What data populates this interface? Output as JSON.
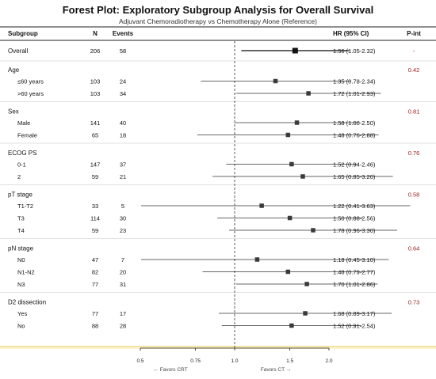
{
  "title": "Forest Plot: Exploratory Subgroup Analysis for Overall Survival",
  "subtitle": "Adjuvant Chemoradiotherapy vs Chemotherapy Alone (Reference)",
  "headers": {
    "subgroup": "Subgroup",
    "n": "N",
    "events": "Events",
    "hr": "HR (95% CI)",
    "pint": "P-int"
  },
  "footer": {
    "favors_left": "← Favors CRT",
    "favors_right": "Favors CT →"
  },
  "colors": {
    "ref_band": "#fdf5d6",
    "ref_border": "#e5cf6a",
    "pint": "#a01f1f",
    "box": "#3a3a3a",
    "line": "#333333"
  },
  "chart_data": {
    "type": "forest",
    "x_ticks": [
      0.5,
      0.75,
      1.0,
      1.5,
      2.0
    ],
    "x_tick_labels": [
      "0.5",
      "0.75",
      "1.0",
      "1.5",
      "2.0"
    ],
    "xlim": [
      0.5,
      2.0
    ],
    "reference_line": 1.0,
    "overall": {
      "label": "Overall",
      "n": "206",
      "events": "58",
      "hr": 1.56,
      "lo": 1.05,
      "hi": 2.32,
      "text": "1.56 (1.05-2.32)",
      "pint": "-"
    },
    "groups": [
      {
        "name": "Age",
        "pint": "0.42",
        "rows": [
          {
            "label": "≤60 years",
            "n": "103",
            "events": "24",
            "hr": 1.35,
            "lo": 0.78,
            "hi": 2.34,
            "text": "1.35 (0.78-2.34)"
          },
          {
            "label": ">60 years",
            "n": "103",
            "events": "34",
            "hr": 1.72,
            "lo": 1.01,
            "hi": 2.93,
            "text": "1.72 (1.01-2.93)"
          }
        ]
      },
      {
        "name": "Sex",
        "pint": "0.81",
        "rows": [
          {
            "label": "Male",
            "n": "141",
            "events": "40",
            "hr": 1.58,
            "lo": 1.0,
            "hi": 2.5,
            "text": "1.58 (1.00-2.50)"
          },
          {
            "label": "Female",
            "n": "65",
            "events": "18",
            "hr": 1.48,
            "lo": 0.76,
            "hi": 2.88,
            "text": "1.48 (0.76-2.88)"
          }
        ]
      },
      {
        "name": "ECOG PS",
        "pint": "0.76",
        "rows": [
          {
            "label": "0-1",
            "n": "147",
            "events": "37",
            "hr": 1.52,
            "lo": 0.94,
            "hi": 2.46,
            "text": "1.52 (0.94-2.46)"
          },
          {
            "label": "2",
            "n": "59",
            "events": "21",
            "hr": 1.65,
            "lo": 0.85,
            "hi": 3.2,
            "text": "1.65 (0.85-3.20)"
          }
        ]
      },
      {
        "name": "pT stage",
        "pint": "0.58",
        "rows": [
          {
            "label": "T1-T2",
            "n": "33",
            "events": "5",
            "hr": 1.22,
            "lo": 0.41,
            "hi": 3.63,
            "text": "1.22 (0.41-3.63)"
          },
          {
            "label": "T3",
            "n": "114",
            "events": "30",
            "hr": 1.5,
            "lo": 0.88,
            "hi": 2.56,
            "text": "1.50 (0.88-2.56)"
          },
          {
            "label": "T4",
            "n": "59",
            "events": "23",
            "hr": 1.78,
            "lo": 0.96,
            "hi": 3.3,
            "text": "1.78 (0.96-3.30)"
          }
        ]
      },
      {
        "name": "pN stage",
        "pint": "0.64",
        "rows": [
          {
            "label": "N0",
            "n": "47",
            "events": "7",
            "hr": 1.18,
            "lo": 0.45,
            "hi": 3.1,
            "text": "1.18 (0.45-3.10)"
          },
          {
            "label": "N1-N2",
            "n": "82",
            "events": "20",
            "hr": 1.48,
            "lo": 0.79,
            "hi": 2.77,
            "text": "1.48 (0.79-2.77)"
          },
          {
            "label": "N3",
            "n": "77",
            "events": "31",
            "hr": 1.7,
            "lo": 1.01,
            "hi": 2.86,
            "text": "1.70 (1.01-2.86)"
          }
        ]
      },
      {
        "name": "D2 dissection",
        "pint": "0.73",
        "rows": [
          {
            "label": "Yes",
            "n": "77",
            "events": "17",
            "hr": 1.68,
            "lo": 0.89,
            "hi": 3.17,
            "text": "1.68 (0.89-3.17)"
          },
          {
            "label": "No",
            "n": "88",
            "events": "28",
            "hr": 1.52,
            "lo": 0.91,
            "hi": 2.54,
            "text": "1.52 (0.91-2.54)"
          }
        ]
      }
    ]
  }
}
